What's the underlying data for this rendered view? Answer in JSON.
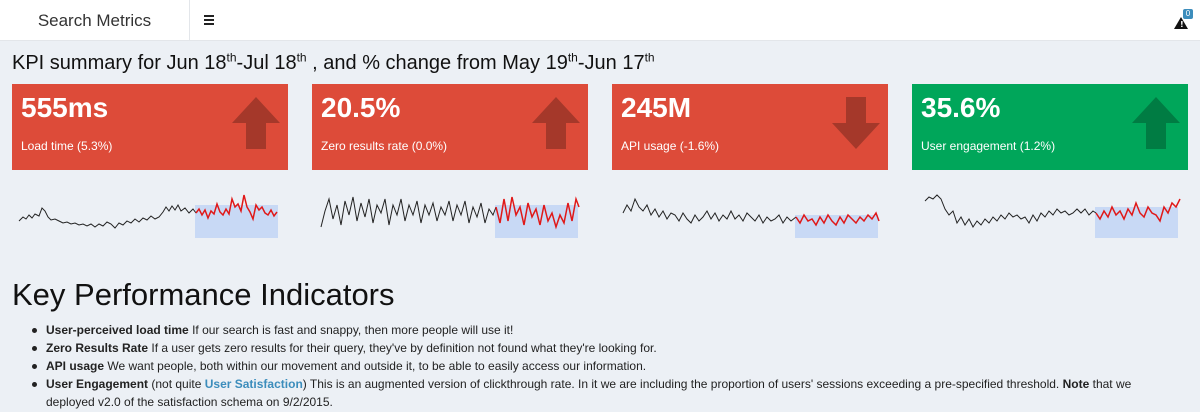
{
  "app": {
    "title": "Search Metrics",
    "alert_count": "0"
  },
  "colors": {
    "red": "#dd4b39",
    "green": "#00a65a",
    "link": "#3c8dbc",
    "spark_highlight": "#c8d9f5"
  },
  "summary": {
    "prefix": "KPI summary for Jun 18",
    "sup1": "th",
    "mid1": "-Jul 18",
    "sup2": "th",
    "mid2": " , and % change from May 19",
    "sup3": "th",
    "mid3": "-Jun 17",
    "sup4": "th"
  },
  "kpis": [
    {
      "value": "555ms",
      "label": "Load time (5.3%)",
      "color": "#dd4b39",
      "arrow": "up-arrow-icon"
    },
    {
      "value": "20.5%",
      "label": "Zero results rate (0.0%)",
      "color": "#dd4b39",
      "arrow": "up-arrow-icon"
    },
    {
      "value": "245M",
      "label": "API usage (-1.6%)",
      "color": "#dd4b39",
      "arrow": "down-arrow-icon"
    },
    {
      "value": "35.6%",
      "label": "User engagement (1.2%)",
      "color": "#00a65a",
      "arrow": "up-arrow-icon"
    }
  ],
  "section_title": "Key Performance Indicators",
  "indicators": [
    {
      "name": "User-perceived load time",
      "desc": " If our search is fast and snappy, then more people will use it!"
    },
    {
      "name": "Zero Results Rate",
      "desc": " If a user gets zero results for their query, they've by definition not found what they're looking for."
    },
    {
      "name": "API usage",
      "desc": " We want people, both within our movement and outside it, to be able to easily access our information."
    },
    {
      "name": "User Engagement",
      "pre": " (not quite ",
      "link": "User Satisfaction",
      "post": ") This is an augmented version of clickthrough rate. In it we are including the proportion of users' sessions exceeding a pre-specified threshold. ",
      "note_label": "Note",
      "note_text": " that we deployed v2.0 of the satisfaction schema on 9/2/2015."
    }
  ]
}
